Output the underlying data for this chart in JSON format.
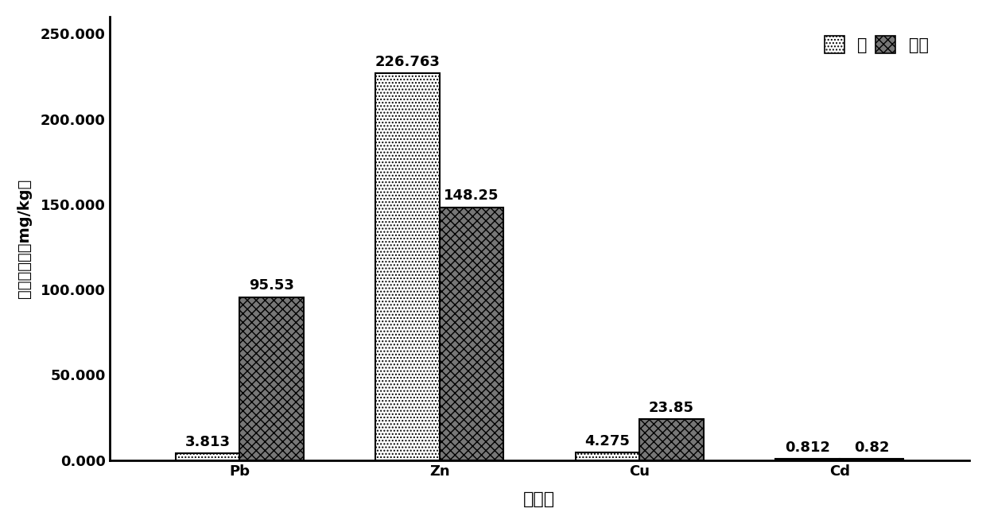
{
  "categories": [
    "Pb",
    "Zn",
    "Cu",
    "Cd"
  ],
  "leaf_values": [
    3.813,
    226.763,
    4.275,
    0.812
  ],
  "soil_values": [
    95.53,
    148.25,
    23.85,
    0.82
  ],
  "leaf_labels": [
    "3.813",
    "226.763",
    "4.275",
    "0.812"
  ],
  "soil_labels": [
    "95.53",
    "148.25",
    "23.85",
    "0.82"
  ],
  "ylabel": "重金属含量（mg/kg）",
  "xlabel": "重金属",
  "ylim": [
    0,
    260
  ],
  "yticks": [
    0.0,
    50.0,
    100.0,
    150.0,
    200.0,
    250.0
  ],
  "ytick_labels": [
    "0.000",
    "50.000",
    "100.000",
    "150.000",
    "200.000",
    "250.000"
  ],
  "legend_leaf": "叶",
  "legend_soil": "土壤",
  "bar_width": 0.32,
  "leaf_hatch": "....",
  "soil_hatch": "xxx",
  "annot_fontsize": 13,
  "axis_fontsize": 14,
  "tick_fontsize": 13,
  "legend_fontsize": 15
}
